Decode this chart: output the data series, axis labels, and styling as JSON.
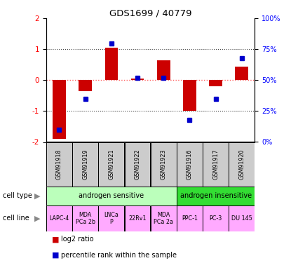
{
  "title": "GDS1699 / 40779",
  "samples": [
    "GSM91918",
    "GSM91919",
    "GSM91921",
    "GSM91922",
    "GSM91923",
    "GSM91916",
    "GSM91917",
    "GSM91920"
  ],
  "log2_ratio": [
    -1.9,
    -0.35,
    1.05,
    0.05,
    0.65,
    -1.0,
    -0.2,
    0.45
  ],
  "percentile_rank": [
    10,
    35,
    80,
    52,
    52,
    18,
    35,
    68
  ],
  "bar_color": "#cc0000",
  "square_color": "#0000cc",
  "cell_type_groups": [
    {
      "label": "androgen sensitive",
      "start": 0,
      "end": 4,
      "color": "#bbffbb"
    },
    {
      "label": "androgen insensitive",
      "start": 5,
      "end": 7,
      "color": "#33dd33"
    }
  ],
  "cell_line_groups": [
    {
      "label": "LAPC-4",
      "start": 0,
      "end": 0,
      "color": "#ffaaff"
    },
    {
      "label": "MDA\nPCa 2b",
      "start": 1,
      "end": 1,
      "color": "#ffaaff"
    },
    {
      "label": "LNCa\nP",
      "start": 2,
      "end": 2,
      "color": "#ffaaff"
    },
    {
      "label": "22Rv1",
      "start": 3,
      "end": 3,
      "color": "#ffaaff"
    },
    {
      "label": "MDA\nPCa 2a",
      "start": 4,
      "end": 4,
      "color": "#ffaaff"
    },
    {
      "label": "PPC-1",
      "start": 5,
      "end": 5,
      "color": "#ffaaff"
    },
    {
      "label": "PC-3",
      "start": 6,
      "end": 6,
      "color": "#ffaaff"
    },
    {
      "label": "DU 145",
      "start": 7,
      "end": 7,
      "color": "#ffaaff"
    }
  ],
  "ylim_left": [
    -2,
    2
  ],
  "ylim_right": [
    0,
    100
  ],
  "yticks_left": [
    -2,
    -1,
    0,
    1,
    2
  ],
  "yticks_right": [
    0,
    25,
    50,
    75,
    100
  ],
  "yticklabels_right": [
    "0%",
    "25%",
    "50%",
    "75%",
    "100%"
  ],
  "zero_line_color": "#ff6666",
  "dotted_line_color": "#444444",
  "legend_log2_label": "log2 ratio",
  "legend_percentile_label": "percentile rank within the sample",
  "label_cell_type": "cell type",
  "label_cell_line": "cell line",
  "sample_box_color": "#cccccc",
  "background_color": "#ffffff"
}
